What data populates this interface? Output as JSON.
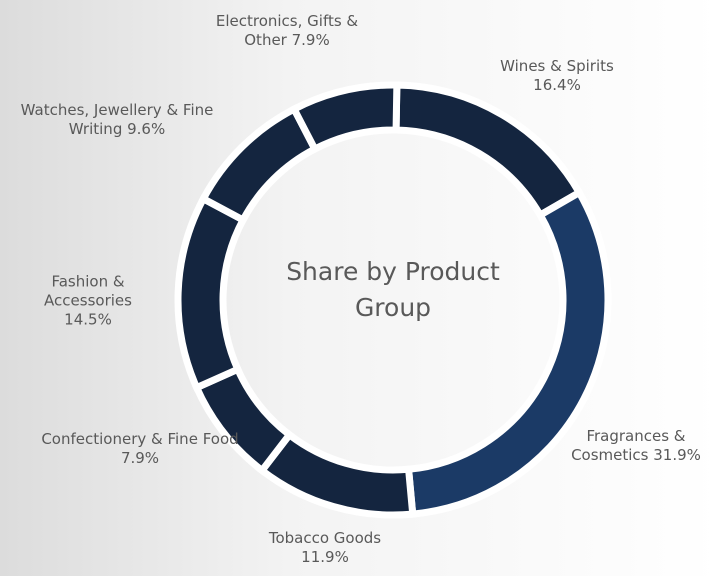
{
  "chart_data": {
    "type": "donut",
    "title": "Share by Product Group",
    "categories": [
      "Wines & Spirits",
      "Fragrances & Cosmetics",
      "Tobacco Goods",
      "Confectionery & Fine Food",
      "Fashion & Accessories",
      "Watches, Jewellery & Fine Writing",
      "Electronics, Gifts & Other"
    ],
    "values": [
      16.4,
      31.9,
      11.9,
      7.9,
      14.5,
      9.6,
      7.9
    ],
    "value_labels": [
      "16.4%",
      "31.9%",
      "11.9%",
      "7.9%",
      "14.5%",
      "9.6%",
      "7.9%"
    ],
    "colors": [
      "#14253f",
      "#1b3a66",
      "#14253f",
      "#14253f",
      "#14253f",
      "#14253f",
      "#14253f"
    ]
  }
}
